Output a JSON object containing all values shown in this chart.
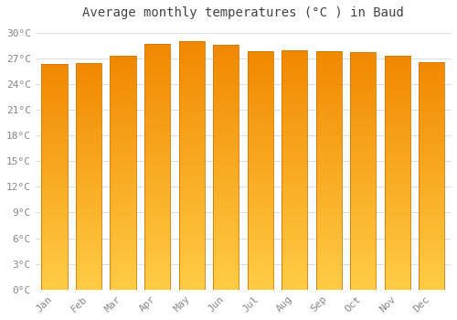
{
  "title": "Average monthly temperatures (°C ) in Baud",
  "months": [
    "Jan",
    "Feb",
    "Mar",
    "Apr",
    "May",
    "Jun",
    "Jul",
    "Aug",
    "Sep",
    "Oct",
    "Nov",
    "Dec"
  ],
  "temperatures": [
    26.3,
    26.4,
    27.3,
    28.7,
    29.0,
    28.6,
    27.8,
    27.9,
    27.8,
    27.7,
    27.3,
    26.6
  ],
  "bar_color_bottom": "#FFCC44",
  "bar_color_top": "#F08800",
  "bar_edge_color": "#D07700",
  "background_color": "#FFFFFF",
  "plot_bg_color": "#FFFFFF",
  "grid_color": "#DDDDDD",
  "yticks": [
    0,
    3,
    6,
    9,
    12,
    15,
    18,
    21,
    24,
    27,
    30
  ],
  "ylim": [
    0,
    31
  ],
  "title_fontsize": 10,
  "tick_fontsize": 8,
  "tick_color": "#888888",
  "font_family": "monospace"
}
